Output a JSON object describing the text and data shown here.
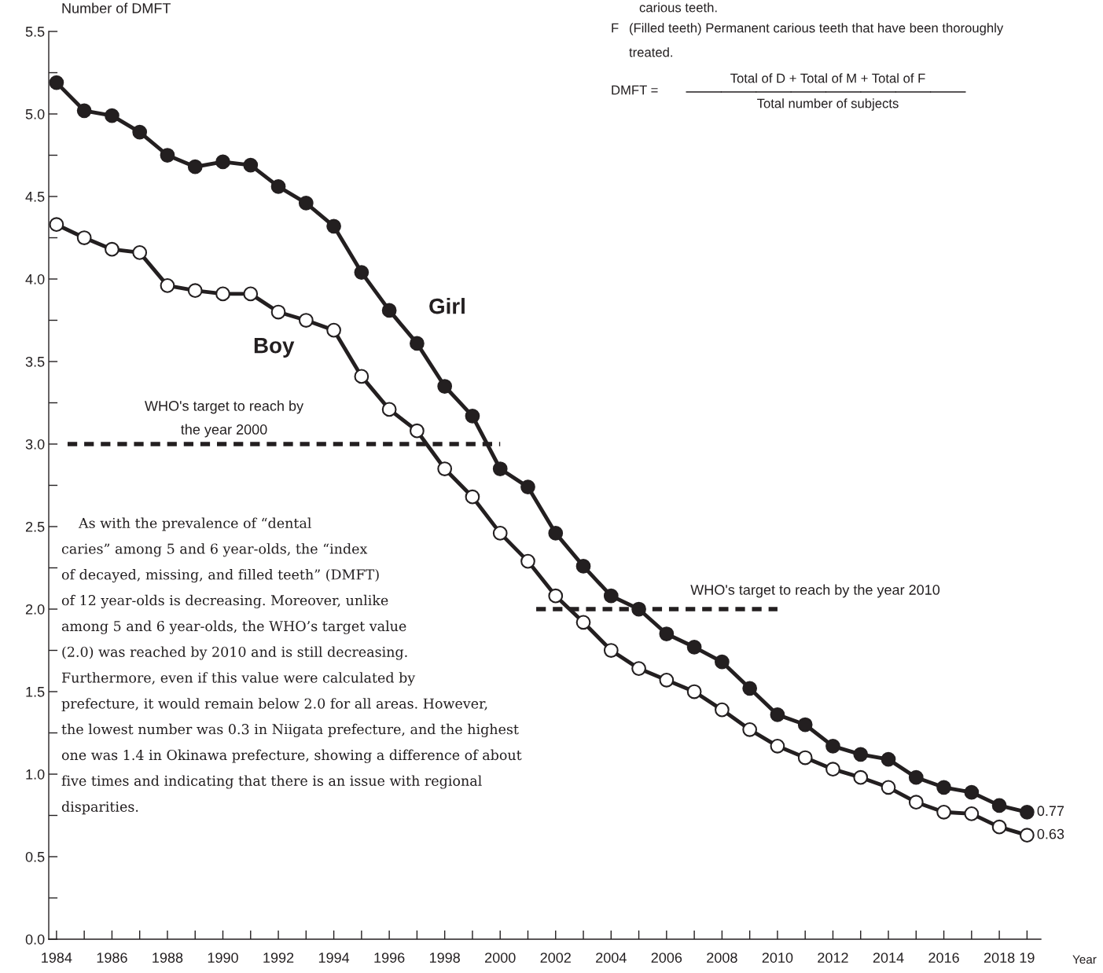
{
  "chart_data": {
    "type": "line",
    "ylabel": "Number of DMFT",
    "xlabel": "Year",
    "x": [
      1984,
      1985,
      1986,
      1987,
      1988,
      1989,
      1990,
      1991,
      1992,
      1993,
      1994,
      1995,
      1996,
      1997,
      1998,
      1999,
      2000,
      2001,
      2002,
      2003,
      2004,
      2005,
      2006,
      2007,
      2008,
      2009,
      2010,
      2011,
      2012,
      2013,
      2014,
      2015,
      2016,
      2017,
      2018,
      2019
    ],
    "series": [
      {
        "name": "Girl",
        "color": "#231f20",
        "values": [
          5.19,
          5.02,
          4.99,
          4.89,
          4.75,
          4.68,
          4.71,
          4.69,
          4.56,
          4.46,
          4.32,
          4.04,
          3.81,
          3.61,
          3.35,
          3.17,
          2.85,
          2.74,
          2.46,
          2.26,
          2.08,
          2.0,
          1.85,
          1.77,
          1.68,
          1.52,
          1.36,
          1.3,
          1.17,
          1.12,
          1.09,
          0.98,
          0.92,
          0.89,
          0.81,
          0.77
        ],
        "value_labels": [
          null,
          null,
          null,
          null,
          null,
          null,
          null,
          null,
          null,
          null,
          null,
          null,
          null,
          null,
          null,
          null,
          null,
          null,
          null,
          null,
          null,
          null,
          null,
          null,
          null,
          null,
          null,
          null,
          null,
          null,
          null,
          null,
          null,
          null,
          null,
          "0.77"
        ]
      },
      {
        "name": "Boy",
        "color": "#231f20",
        "values": [
          4.33,
          4.25,
          4.18,
          4.16,
          3.96,
          3.93,
          3.91,
          3.91,
          3.8,
          3.75,
          3.69,
          3.41,
          3.21,
          3.08,
          2.85,
          2.68,
          2.46,
          2.29,
          2.08,
          1.92,
          1.75,
          1.64,
          1.57,
          1.5,
          1.39,
          1.27,
          1.17,
          1.1,
          1.03,
          0.98,
          0.92,
          0.83,
          0.77,
          0.76,
          0.68,
          0.63
        ],
        "value_labels": [
          null,
          null,
          null,
          null,
          null,
          null,
          null,
          null,
          null,
          null,
          null,
          null,
          null,
          null,
          null,
          null,
          null,
          null,
          null,
          null,
          null,
          null,
          null,
          null,
          null,
          null,
          null,
          null,
          null,
          null,
          null,
          null,
          null,
          null,
          null,
          "0.63"
        ]
      },
      {
        "type": "line",
        "color": "#231f20",
        "line_style": "dashed",
        "marker": "none",
        "x": [
          1984.4,
          2000
        ],
        "values": [
          3.0,
          3.0
        ]
      },
      {
        "type": "line",
        "color": "#231f20",
        "line_style": "dashed",
        "marker": "none",
        "x": [
          2001.3,
          2010
        ],
        "values": [
          2.0,
          2.0
        ]
      }
    ],
    "marker": "circle",
    "line_style": "solid",
    "grid": false,
    "legend": false,
    "xlim": [
      1983.72,
      2019.5
    ],
    "ylim": [
      0,
      5.5
    ],
    "xticks": [
      1984,
      {
        "value": 1985,
        "label": null
      },
      1986,
      {
        "value": 1987,
        "label": null
      },
      1988,
      {
        "value": 1989,
        "label": null
      },
      1990,
      {
        "value": 1991,
        "label": null
      },
      1992,
      {
        "value": 1993,
        "label": null
      },
      1994,
      {
        "value": 1995,
        "label": null
      },
      1996,
      {
        "value": 1997,
        "label": null
      },
      1998,
      {
        "value": 1999,
        "label": null
      },
      2000,
      {
        "value": 2001,
        "label": null
      },
      2002,
      {
        "value": 2003,
        "label": null
      },
      2004,
      {
        "value": 2005,
        "label": null
      },
      2006,
      {
        "value": 2007,
        "label": null
      },
      2008,
      {
        "value": 2009,
        "label": null
      },
      2010,
      {
        "value": 2011,
        "label": null
      },
      2012,
      {
        "value": 2013,
        "label": null
      },
      2014,
      {
        "value": 2015,
        "label": null
      },
      2016,
      {
        "value": 2017,
        "label": null
      },
      2018,
      {
        "value": 2019,
        "label": "19"
      }
    ],
    "yticks": [
      {
        "value": 0,
        "label": "0.0"
      },
      {
        "value": 0.25,
        "label": null
      },
      0.5,
      {
        "value": 0.75,
        "label": null
      },
      {
        "value": 1,
        "label": "1.0"
      },
      {
        "value": 1.25,
        "label": null
      },
      1.5,
      {
        "value": 1.75,
        "label": null
      },
      {
        "value": 2,
        "label": "2.0"
      },
      {
        "value": 2.25,
        "label": null
      },
      2.5,
      {
        "value": 2.75,
        "label": null
      },
      {
        "value": 3,
        "label": "3.0"
      },
      {
        "value": 3.25,
        "label": null
      },
      3.5,
      {
        "value": 3.75,
        "label": null
      },
      {
        "value": 4,
        "label": "4.0"
      },
      {
        "value": 4.25,
        "label": null
      },
      4.5,
      {
        "value": 4.75,
        "label": null
      },
      {
        "value": 5,
        "label": "5.0"
      },
      {
        "value": 5.25,
        "label": null
      },
      5.5
    ],
    "annotations": [
      "carious teeth.",
      "F",
      "(Filled teeth) Permanent carious teeth that have been thoroughly",
      "treated.",
      "DMFT =",
      "Total of D + Total of M + Total of F",
      "Total number of subjects",
      "WHO's target to reach by",
      "the year 2000",
      "WHO's target to reach by the year 2010",
      "As with the prevalence of “dental",
      "caries” among 5 and 6 year-olds, the “index",
      "of decayed, missing, and filled teeth” (DMFT)",
      "of 12 year-olds is decreasing. Moreover, unlike",
      "among 5 and 6 year-olds, the WHO’s target value",
      "(2.0) was reached by 2010 and is still decreasing.",
      "Furthermore, even if this value were calculated by",
      "prefecture, it would remain below 2.0 for all areas. However,",
      "the lowest number was 0.3 in Niigata prefecture, and the highest",
      "one was 1.4 in Okinawa prefecture, showing a difference of about",
      "five times and indicating that there is an issue with regional",
      "disparities."
    ]
  }
}
